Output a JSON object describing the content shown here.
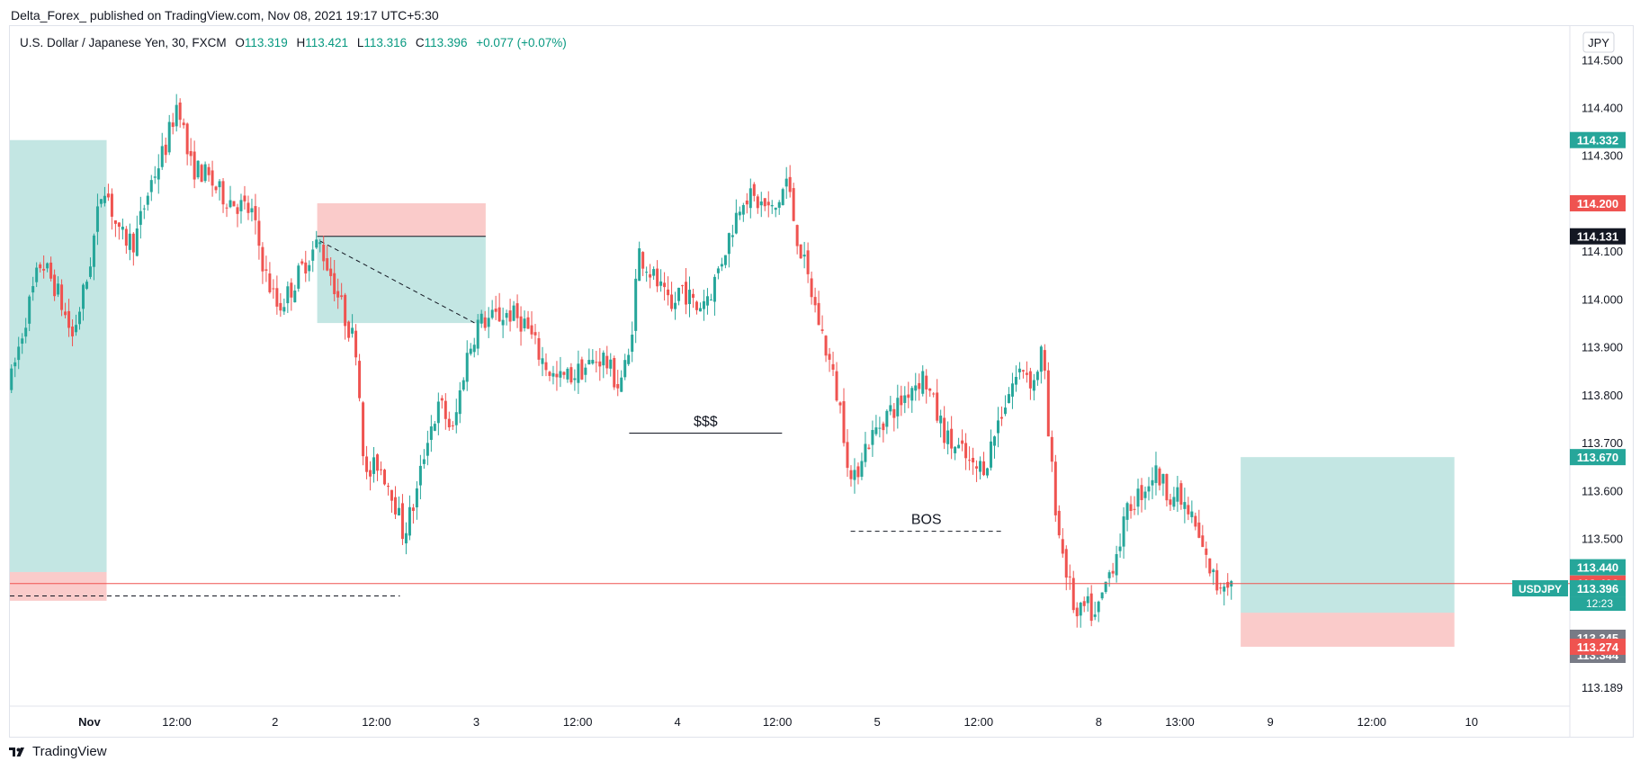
{
  "header": {
    "published": "Delta_Forex_ published on TradingView.com, Nov 08, 2021 19:17 UTC+5:30"
  },
  "legend": {
    "symbol": "U.S. Dollar / Japanese Yen, 30, FXCM",
    "o_label": "O",
    "o_value": "113.319",
    "h_label": "H",
    "h_value": "113.421",
    "l_label": "L",
    "l_value": "113.316",
    "c_label": "C",
    "c_value": "113.396",
    "change": "+0.077 (+0.07%)"
  },
  "footer": {
    "brand": "TradingView"
  },
  "colors": {
    "up": "#26a69a",
    "down": "#ef5350",
    "text": "#131722",
    "axis_text": "#131722",
    "grid_border": "#e0e3eb"
  },
  "chart_data": {
    "type": "candlestick",
    "symbol": "USDJPY",
    "interval": "30",
    "currency": "JPY",
    "y_range": [
      113.15,
      114.57
    ],
    "y_ticks": [
      "114.500",
      "114.400",
      "114.300",
      "114.100",
      "114.000",
      "113.900",
      "113.800",
      "113.700",
      "113.600",
      "113.500",
      "113.189"
    ],
    "x_range": [
      0,
      100
    ],
    "x_ticks": [
      {
        "x": 5.1,
        "label": "Nov"
      },
      {
        "x": 10.7,
        "label": "12:00"
      },
      {
        "x": 17.0,
        "label": "2"
      },
      {
        "x": 23.5,
        "label": "12:00"
      },
      {
        "x": 29.9,
        "label": "3"
      },
      {
        "x": 36.4,
        "label": "12:00"
      },
      {
        "x": 42.8,
        "label": "4"
      },
      {
        "x": 49.2,
        "label": "12:00"
      },
      {
        "x": 55.6,
        "label": "5"
      },
      {
        "x": 62.1,
        "label": "12:00"
      },
      {
        "x": 69.8,
        "label": "8"
      },
      {
        "x": 75.0,
        "label": "13:00"
      },
      {
        "x": 80.8,
        "label": "9"
      },
      {
        "x": 87.3,
        "label": "12:00"
      },
      {
        "x": 93.7,
        "label": "10"
      }
    ],
    "price_path": [
      [
        0.0,
        113.82
      ],
      [
        1.0,
        113.96
      ],
      [
        2.0,
        114.08
      ],
      [
        3.0,
        114.02
      ],
      [
        4.0,
        113.92
      ],
      [
        5.0,
        114.05
      ],
      [
        6.0,
        114.25
      ],
      [
        7.0,
        114.13
      ],
      [
        8.0,
        114.12
      ],
      [
        9.0,
        114.24
      ],
      [
        10.0,
        114.32
      ],
      [
        10.8,
        114.42
      ],
      [
        11.5,
        114.28
      ],
      [
        12.5,
        114.26
      ],
      [
        13.5,
        114.22
      ],
      [
        14.5,
        114.2
      ],
      [
        15.5,
        114.18
      ],
      [
        16.4,
        114.05
      ],
      [
        17.2,
        113.98
      ],
      [
        18.0,
        114.02
      ],
      [
        19.0,
        114.08
      ],
      [
        19.8,
        114.12
      ],
      [
        20.6,
        114.05
      ],
      [
        21.5,
        113.96
      ],
      [
        22.2,
        113.9
      ],
      [
        22.8,
        113.62
      ],
      [
        23.6,
        113.66
      ],
      [
        24.5,
        113.6
      ],
      [
        25.2,
        113.51
      ],
      [
        26.0,
        113.58
      ],
      [
        26.8,
        113.72
      ],
      [
        27.6,
        113.78
      ],
      [
        28.4,
        113.72
      ],
      [
        29.2,
        113.87
      ],
      [
        30.0,
        113.95
      ],
      [
        31.0,
        113.96
      ],
      [
        32.0,
        113.97
      ],
      [
        33.0,
        113.95
      ],
      [
        34.0,
        113.88
      ],
      [
        35.0,
        113.83
      ],
      [
        36.0,
        113.84
      ],
      [
        37.0,
        113.86
      ],
      [
        38.0,
        113.88
      ],
      [
        39.0,
        113.82
      ],
      [
        39.7,
        113.88
      ],
      [
        40.3,
        114.1
      ],
      [
        41.0,
        114.06
      ],
      [
        41.7,
        114.02
      ],
      [
        42.4,
        113.97
      ],
      [
        43.0,
        114.03
      ],
      [
        44.0,
        113.98
      ],
      [
        45.0,
        114.02
      ],
      [
        46.0,
        114.12
      ],
      [
        47.0,
        114.22
      ],
      [
        48.0,
        114.2
      ],
      [
        49.0,
        114.18
      ],
      [
        49.8,
        114.25
      ],
      [
        50.4,
        114.14
      ],
      [
        51.0,
        114.06
      ],
      [
        51.8,
        113.96
      ],
      [
        52.6,
        113.86
      ],
      [
        53.3,
        113.76
      ],
      [
        54.0,
        113.6
      ],
      [
        54.6,
        113.68
      ],
      [
        55.4,
        113.72
      ],
      [
        56.2,
        113.76
      ],
      [
        57.0,
        113.78
      ],
      [
        57.8,
        113.82
      ],
      [
        58.6,
        113.84
      ],
      [
        59.4,
        113.76
      ],
      [
        60.2,
        113.7
      ],
      [
        61.0,
        113.68
      ],
      [
        61.8,
        113.64
      ],
      [
        62.6,
        113.66
      ],
      [
        63.4,
        113.75
      ],
      [
        64.2,
        113.82
      ],
      [
        65.0,
        113.86
      ],
      [
        65.6,
        113.82
      ],
      [
        66.2,
        113.9
      ],
      [
        66.6,
        113.7
      ],
      [
        67.2,
        113.52
      ],
      [
        67.8,
        113.42
      ],
      [
        68.4,
        113.33
      ],
      [
        69.0,
        113.36
      ],
      [
        69.6,
        113.33
      ],
      [
        70.2,
        113.4
      ],
      [
        71.0,
        113.48
      ],
      [
        71.8,
        113.57
      ],
      [
        72.6,
        113.6
      ],
      [
        73.4,
        113.64
      ],
      [
        74.2,
        113.6
      ],
      [
        75.0,
        113.58
      ],
      [
        75.8,
        113.54
      ],
      [
        76.6,
        113.46
      ],
      [
        77.4,
        113.4
      ],
      [
        78.0,
        113.42
      ],
      [
        78.5,
        113.396
      ]
    ],
    "horizontal_line": {
      "price": 113.406,
      "color": "#ef5350"
    },
    "positions": [
      {
        "type": "long",
        "x_start": 0.0,
        "x_end": 6.2,
        "target": 114.332,
        "entry": 113.43,
        "stop": 113.37
      },
      {
        "type": "short",
        "x_start": 19.7,
        "x_end": 30.5,
        "stop": 114.2,
        "entry": 114.131,
        "target": 113.95
      },
      {
        "type": "long",
        "x_start": 78.9,
        "x_end": 92.6,
        "target": 113.67,
        "entry": 113.345,
        "stop": 113.274
      }
    ],
    "annotations": [
      {
        "text": "$$$",
        "x_start": 39.7,
        "x_end": 49.5,
        "price": 113.72,
        "style": "solid"
      },
      {
        "text": "BOS",
        "x_start": 53.9,
        "x_end": 63.6,
        "price": 113.515,
        "style": "dashed"
      }
    ],
    "price_labels": [
      {
        "value": "114.332",
        "price": 114.332,
        "bg": "#26a69a"
      },
      {
        "value": "114.200",
        "price": 114.2,
        "bg": "#ef5350"
      },
      {
        "value": "114.131",
        "price": 114.131,
        "bg": "#131722"
      },
      {
        "value": "113.670",
        "price": 113.67,
        "bg": "#26a69a"
      },
      {
        "value": "113.440",
        "price": 113.44,
        "bg": "#26a69a"
      },
      {
        "value": "113.406",
        "price": 113.406,
        "bg": "#ef5350"
      },
      {
        "value": "113.396",
        "price": 113.396,
        "bg": "#26a69a"
      },
      {
        "value": "113.345",
        "price": 113.345,
        "bg": "#787b86"
      },
      {
        "value": "113.344",
        "price": 113.344,
        "bg": "#787b86"
      },
      {
        "value": "113.274",
        "price": 113.274,
        "bg": "#ef5350"
      }
    ],
    "symbol_tag": "USDJPY",
    "countdown": "12:23"
  }
}
